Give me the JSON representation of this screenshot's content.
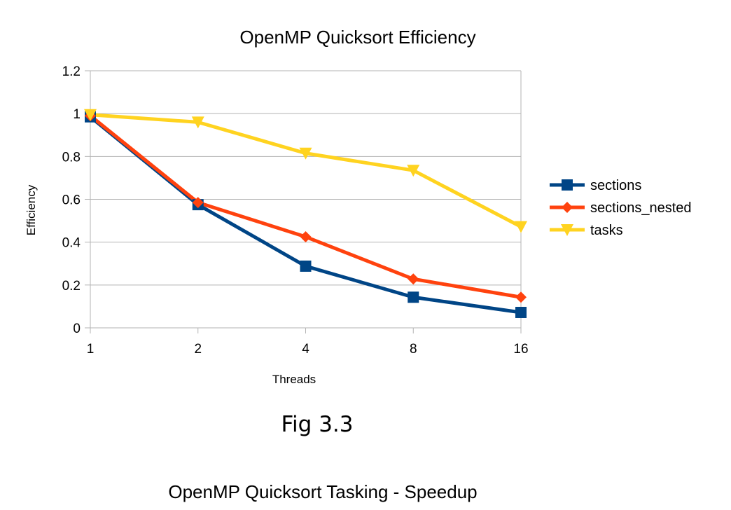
{
  "chart_data": {
    "type": "line",
    "title": "OpenMP Quicksort Efficiency",
    "xlabel": "Threads",
    "ylabel": "Efficiency",
    "categories": [
      "1",
      "2",
      "4",
      "8",
      "16"
    ],
    "yticks": [
      "0",
      "0.2",
      "0.4",
      "0.6",
      "0.8",
      "1",
      "1.2"
    ],
    "ylim": [
      0,
      1.2
    ],
    "grid": true,
    "legend_position": "right",
    "series": [
      {
        "name": "sections",
        "values": [
          0.985,
          0.575,
          0.288,
          0.143,
          0.072
        ],
        "color": "#004586",
        "marker": "square"
      },
      {
        "name": "sections_nested",
        "values": [
          0.99,
          0.585,
          0.425,
          0.228,
          0.143
        ],
        "color": "#ff420e",
        "marker": "diamond"
      },
      {
        "name": "tasks",
        "values": [
          0.995,
          0.96,
          0.815,
          0.735,
          0.472
        ],
        "color": "#ffd320",
        "marker": "triangle-down"
      }
    ]
  },
  "figure_caption": "Fig 3.3",
  "next_chart_title": "OpenMP Quicksort Tasking - Speedup"
}
